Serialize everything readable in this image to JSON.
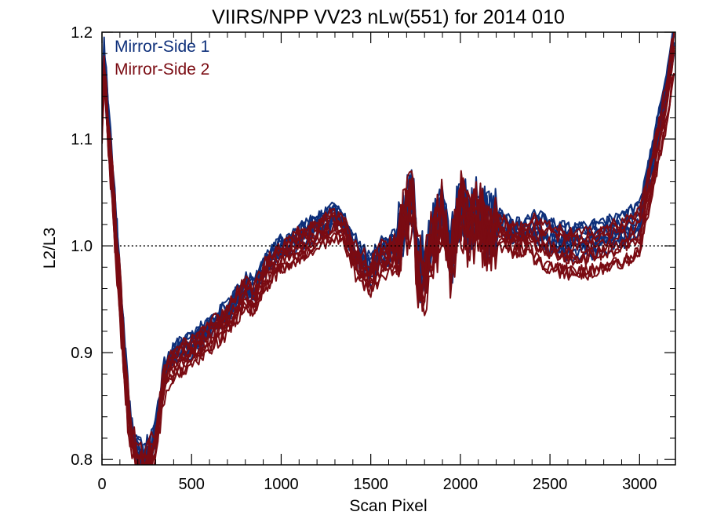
{
  "chart_data": {
    "type": "line",
    "title": "VIIRS/NPP VV23 nLw(551) for 2014 010",
    "xlabel": "Scan Pixel",
    "ylabel": "L2/L3",
    "xlim": [
      0,
      3200
    ],
    "ylim": [
      0.795,
      1.2
    ],
    "xticks": [
      0,
      500,
      1000,
      1500,
      2000,
      2500,
      3000
    ],
    "yticks": [
      0.8,
      0.9,
      1.0,
      1.1,
      1.2
    ],
    "xtick_labels": [
      "0",
      "500",
      "1000",
      "1500",
      "2000",
      "2500",
      "3000"
    ],
    "ytick_labels": [
      "0.8",
      "0.9",
      "1.0",
      "1.1",
      "1.2"
    ],
    "reference_line": {
      "y": 1.0,
      "style": "dotted",
      "color": "#000000"
    },
    "legend_position": "top-left",
    "series": [
      {
        "name": "Mirror-Side 1",
        "color": "#0d2f7a",
        "line_count": 10
      },
      {
        "name": "Mirror-Side 2",
        "color": "#7a0b12",
        "line_count": 10
      }
    ],
    "profile": {
      "x": [
        0,
        10,
        40,
        70,
        100,
        130,
        160,
        200,
        250,
        300,
        330,
        350,
        400,
        500,
        600,
        700,
        800,
        850,
        900,
        1000,
        1100,
        1200,
        1300,
        1350,
        1400,
        1450,
        1500,
        1550,
        1600,
        1650,
        1700,
        1730,
        1760,
        1800,
        1850,
        1900,
        1950,
        2000,
        2050,
        2100,
        2150,
        2200,
        2300,
        2400,
        2500,
        2600,
        2700,
        2800,
        2900,
        3000,
        3050,
        3100,
        3150,
        3200
      ],
      "y": [
        1.13,
        1.17,
        1.1,
        1.03,
        0.96,
        0.88,
        0.83,
        0.8,
        0.8,
        0.82,
        0.86,
        0.88,
        0.895,
        0.905,
        0.92,
        0.935,
        0.96,
        0.955,
        0.975,
        0.995,
        1.005,
        1.015,
        1.025,
        1.02,
        0.995,
        0.985,
        0.975,
        0.99,
        0.995,
        1.0,
        1.03,
        1.05,
        0.98,
        0.975,
        1.01,
        1.03,
        0.99,
        1.04,
        1.02,
        1.03,
        1.015,
        1.02,
        1.01,
        1.015,
        1.005,
        1.0,
        1.0,
        1.005,
        1.01,
        1.02,
        1.06,
        1.1,
        1.14,
        1.2
      ]
    }
  }
}
